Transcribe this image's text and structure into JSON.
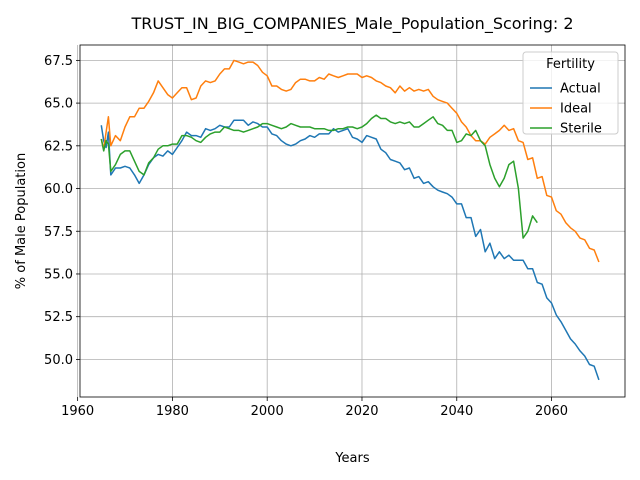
{
  "chart_data": {
    "type": "line",
    "title": "TRUST_IN_BIG_COMPANIES_Male_Population_Scoring: 2",
    "xlabel": "Years",
    "ylabel": "% of Male Population",
    "xlim": [
      1960.5,
      2075.5
    ],
    "ylim": [
      47.8,
      68.4
    ],
    "xticks": [
      1960,
      1980,
      2000,
      2020,
      2040,
      2060
    ],
    "yticks": [
      50.0,
      52.5,
      55.0,
      57.5,
      60.0,
      62.5,
      65.0,
      67.5
    ],
    "grid": true,
    "legend": {
      "title": "Fertility",
      "placement": "top-right"
    },
    "series": [
      {
        "name": "Actual",
        "color": "#1f77b4",
        "points": [
          [
            1965,
            63.7
          ],
          [
            1965.5,
            62.8
          ],
          [
            1966,
            62.4
          ],
          [
            1966.5,
            63.3
          ],
          [
            1967,
            60.8
          ],
          [
            1968,
            61.2
          ],
          [
            1969,
            61.2
          ],
          [
            1970,
            61.3
          ],
          [
            1971,
            61.2
          ],
          [
            1972,
            60.8
          ],
          [
            1973,
            60.3
          ],
          [
            1974,
            60.8
          ],
          [
            1975,
            61.4
          ],
          [
            1976,
            61.8
          ],
          [
            1977,
            62.0
          ],
          [
            1978,
            61.9
          ],
          [
            1979,
            62.2
          ],
          [
            1980,
            62.0
          ],
          [
            1981,
            62.4
          ],
          [
            1982,
            62.8
          ],
          [
            1983,
            63.3
          ],
          [
            1984,
            63.1
          ],
          [
            1985,
            63.1
          ],
          [
            1986,
            63.0
          ],
          [
            1987,
            63.5
          ],
          [
            1988,
            63.4
          ],
          [
            1989,
            63.5
          ],
          [
            1990,
            63.7
          ],
          [
            1991,
            63.6
          ],
          [
            1992,
            63.6
          ],
          [
            1993,
            64.0
          ],
          [
            1994,
            64.0
          ],
          [
            1995,
            64.0
          ],
          [
            1996,
            63.7
          ],
          [
            1997,
            63.9
          ],
          [
            1998,
            63.8
          ],
          [
            1999,
            63.6
          ],
          [
            2000,
            63.6
          ],
          [
            2001,
            63.2
          ],
          [
            2002,
            63.1
          ],
          [
            2003,
            62.8
          ],
          [
            2004,
            62.6
          ],
          [
            2005,
            62.5
          ],
          [
            2006,
            62.6
          ],
          [
            2007,
            62.8
          ],
          [
            2008,
            62.9
          ],
          [
            2009,
            63.1
          ],
          [
            2010,
            63.0
          ],
          [
            2011,
            63.2
          ],
          [
            2012,
            63.2
          ],
          [
            2013,
            63.2
          ],
          [
            2014,
            63.5
          ],
          [
            2015,
            63.3
          ],
          [
            2016,
            63.4
          ],
          [
            2017,
            63.5
          ],
          [
            2018,
            63.0
          ],
          [
            2019,
            62.9
          ],
          [
            2020,
            62.7
          ],
          [
            2021,
            63.1
          ],
          [
            2022,
            63.0
          ],
          [
            2023,
            62.9
          ],
          [
            2024,
            62.3
          ],
          [
            2025,
            62.1
          ],
          [
            2026,
            61.7
          ],
          [
            2027,
            61.6
          ],
          [
            2028,
            61.5
          ],
          [
            2029,
            61.1
          ],
          [
            2030,
            61.2
          ],
          [
            2031,
            60.6
          ],
          [
            2032,
            60.7
          ],
          [
            2033,
            60.3
          ],
          [
            2034,
            60.4
          ],
          [
            2035,
            60.1
          ],
          [
            2036,
            59.9
          ],
          [
            2037,
            59.8
          ],
          [
            2038,
            59.7
          ],
          [
            2039,
            59.5
          ],
          [
            2040,
            59.1
          ],
          [
            2041,
            59.1
          ],
          [
            2042,
            58.3
          ],
          [
            2043,
            58.3
          ],
          [
            2044,
            57.2
          ],
          [
            2045,
            57.6
          ],
          [
            2046,
            56.3
          ],
          [
            2047,
            56.8
          ],
          [
            2048,
            55.9
          ],
          [
            2049,
            56.3
          ],
          [
            2050,
            55.9
          ],
          [
            2051,
            56.1
          ],
          [
            2052,
            55.8
          ],
          [
            2053,
            55.8
          ],
          [
            2054,
            55.8
          ],
          [
            2055,
            55.3
          ],
          [
            2056,
            55.3
          ],
          [
            2057,
            54.5
          ],
          [
            2058,
            54.4
          ],
          [
            2059,
            53.6
          ],
          [
            2060,
            53.3
          ],
          [
            2061,
            52.6
          ],
          [
            2062,
            52.2
          ],
          [
            2063,
            51.7
          ],
          [
            2064,
            51.2
          ],
          [
            2065,
            50.9
          ],
          [
            2066,
            50.5
          ],
          [
            2067,
            50.2
          ],
          [
            2068,
            49.7
          ],
          [
            2069,
            49.6
          ],
          [
            2070,
            48.8
          ]
        ]
      },
      {
        "name": "Ideal",
        "color": "#ff7f0e",
        "points": [
          [
            1965,
            62.9
          ],
          [
            1965.5,
            62.3
          ],
          [
            1966,
            63.3
          ],
          [
            1966.5,
            64.2
          ],
          [
            1967,
            62.5
          ],
          [
            1968,
            63.1
          ],
          [
            1969,
            62.8
          ],
          [
            1970,
            63.6
          ],
          [
            1971,
            64.2
          ],
          [
            1972,
            64.2
          ],
          [
            1973,
            64.7
          ],
          [
            1974,
            64.7
          ],
          [
            1975,
            65.1
          ],
          [
            1976,
            65.6
          ],
          [
            1977,
            66.3
          ],
          [
            1978,
            65.9
          ],
          [
            1979,
            65.5
          ],
          [
            1980,
            65.3
          ],
          [
            1981,
            65.6
          ],
          [
            1982,
            65.9
          ],
          [
            1983,
            65.9
          ],
          [
            1984,
            65.2
          ],
          [
            1985,
            65.3
          ],
          [
            1986,
            66.0
          ],
          [
            1987,
            66.3
          ],
          [
            1988,
            66.2
          ],
          [
            1989,
            66.3
          ],
          [
            1990,
            66.7
          ],
          [
            1991,
            67.0
          ],
          [
            1992,
            67.0
          ],
          [
            1993,
            67.5
          ],
          [
            1994,
            67.4
          ],
          [
            1995,
            67.3
          ],
          [
            1996,
            67.4
          ],
          [
            1997,
            67.4
          ],
          [
            1998,
            67.2
          ],
          [
            1999,
            66.8
          ],
          [
            2000,
            66.6
          ],
          [
            2001,
            66.0
          ],
          [
            2002,
            66.0
          ],
          [
            2003,
            65.8
          ],
          [
            2004,
            65.7
          ],
          [
            2005,
            65.8
          ],
          [
            2006,
            66.2
          ],
          [
            2007,
            66.4
          ],
          [
            2008,
            66.4
          ],
          [
            2009,
            66.3
          ],
          [
            2010,
            66.3
          ],
          [
            2011,
            66.5
          ],
          [
            2012,
            66.4
          ],
          [
            2013,
            66.7
          ],
          [
            2014,
            66.6
          ],
          [
            2015,
            66.5
          ],
          [
            2016,
            66.6
          ],
          [
            2017,
            66.7
          ],
          [
            2018,
            66.7
          ],
          [
            2019,
            66.7
          ],
          [
            2020,
            66.5
          ],
          [
            2021,
            66.6
          ],
          [
            2022,
            66.5
          ],
          [
            2023,
            66.3
          ],
          [
            2024,
            66.2
          ],
          [
            2025,
            66.0
          ],
          [
            2026,
            65.9
          ],
          [
            2027,
            65.6
          ],
          [
            2028,
            66.0
          ],
          [
            2029,
            65.7
          ],
          [
            2030,
            65.9
          ],
          [
            2031,
            65.7
          ],
          [
            2032,
            65.8
          ],
          [
            2033,
            65.7
          ],
          [
            2034,
            65.8
          ],
          [
            2035,
            65.4
          ],
          [
            2036,
            65.2
          ],
          [
            2037,
            65.1
          ],
          [
            2038,
            65.0
          ],
          [
            2039,
            64.7
          ],
          [
            2040,
            64.4
          ],
          [
            2041,
            63.9
          ],
          [
            2042,
            63.6
          ],
          [
            2043,
            63.1
          ],
          [
            2044,
            62.8
          ],
          [
            2045,
            62.8
          ],
          [
            2046,
            62.6
          ],
          [
            2047,
            63.0
          ],
          [
            2048,
            63.2
          ],
          [
            2049,
            63.4
          ],
          [
            2050,
            63.7
          ],
          [
            2051,
            63.4
          ],
          [
            2052,
            63.5
          ],
          [
            2053,
            62.8
          ],
          [
            2054,
            62.7
          ],
          [
            2055,
            61.7
          ],
          [
            2056,
            61.8
          ],
          [
            2057,
            60.6
          ],
          [
            2058,
            60.7
          ],
          [
            2059,
            59.6
          ],
          [
            2060,
            59.5
          ],
          [
            2061,
            58.7
          ],
          [
            2062,
            58.5
          ],
          [
            2063,
            58.0
          ],
          [
            2064,
            57.7
          ],
          [
            2065,
            57.5
          ],
          [
            2066,
            57.1
          ],
          [
            2067,
            57.0
          ],
          [
            2068,
            56.5
          ],
          [
            2069,
            56.4
          ],
          [
            2070,
            55.7
          ]
        ]
      },
      {
        "name": "Sterile",
        "color": "#2ca02c",
        "points": [
          [
            1965,
            62.9
          ],
          [
            1965.5,
            62.2
          ],
          [
            1966,
            62.8
          ],
          [
            1966.5,
            62.6
          ],
          [
            1967,
            61.0
          ],
          [
            1968,
            61.4
          ],
          [
            1969,
            62.0
          ],
          [
            1970,
            62.2
          ],
          [
            1971,
            62.2
          ],
          [
            1972,
            61.6
          ],
          [
            1973,
            61.0
          ],
          [
            1974,
            60.8
          ],
          [
            1975,
            61.5
          ],
          [
            1976,
            61.8
          ],
          [
            1977,
            62.3
          ],
          [
            1978,
            62.5
          ],
          [
            1979,
            62.5
          ],
          [
            1980,
            62.6
          ],
          [
            1981,
            62.6
          ],
          [
            1982,
            63.1
          ],
          [
            1983,
            63.1
          ],
          [
            1984,
            63.0
          ],
          [
            1985,
            62.8
          ],
          [
            1986,
            62.7
          ],
          [
            1987,
            63.0
          ],
          [
            1988,
            63.2
          ],
          [
            1989,
            63.3
          ],
          [
            1990,
            63.3
          ],
          [
            1991,
            63.6
          ],
          [
            1992,
            63.5
          ],
          [
            1993,
            63.4
          ],
          [
            1994,
            63.4
          ],
          [
            1995,
            63.3
          ],
          [
            1996,
            63.4
          ],
          [
            1997,
            63.5
          ],
          [
            1998,
            63.6
          ],
          [
            1999,
            63.8
          ],
          [
            2000,
            63.8
          ],
          [
            2001,
            63.7
          ],
          [
            2002,
            63.6
          ],
          [
            2003,
            63.5
          ],
          [
            2004,
            63.6
          ],
          [
            2005,
            63.8
          ],
          [
            2006,
            63.7
          ],
          [
            2007,
            63.6
          ],
          [
            2008,
            63.6
          ],
          [
            2009,
            63.6
          ],
          [
            2010,
            63.5
          ],
          [
            2011,
            63.5
          ],
          [
            2012,
            63.5
          ],
          [
            2013,
            63.4
          ],
          [
            2014,
            63.4
          ],
          [
            2015,
            63.5
          ],
          [
            2016,
            63.5
          ],
          [
            2017,
            63.6
          ],
          [
            2018,
            63.6
          ],
          [
            2019,
            63.5
          ],
          [
            2020,
            63.6
          ],
          [
            2021,
            63.8
          ],
          [
            2022,
            64.1
          ],
          [
            2023,
            64.3
          ],
          [
            2024,
            64.1
          ],
          [
            2025,
            64.1
          ],
          [
            2026,
            63.9
          ],
          [
            2027,
            63.8
          ],
          [
            2028,
            63.9
          ],
          [
            2029,
            63.8
          ],
          [
            2030,
            63.9
          ],
          [
            2031,
            63.6
          ],
          [
            2032,
            63.6
          ],
          [
            2033,
            63.8
          ],
          [
            2034,
            64.0
          ],
          [
            2035,
            64.2
          ],
          [
            2036,
            63.8
          ],
          [
            2037,
            63.7
          ],
          [
            2038,
            63.4
          ],
          [
            2039,
            63.4
          ],
          [
            2040,
            62.7
          ],
          [
            2041,
            62.8
          ],
          [
            2042,
            63.2
          ],
          [
            2043,
            63.1
          ],
          [
            2044,
            63.4
          ],
          [
            2045,
            62.8
          ],
          [
            2046,
            62.5
          ],
          [
            2047,
            61.4
          ],
          [
            2048,
            60.6
          ],
          [
            2049,
            60.1
          ],
          [
            2050,
            60.6
          ],
          [
            2051,
            61.4
          ],
          [
            2052,
            61.6
          ],
          [
            2053,
            60.0
          ],
          [
            2054,
            57.1
          ],
          [
            2055,
            57.5
          ],
          [
            2056,
            58.4
          ],
          [
            2057,
            58.0
          ]
        ]
      }
    ]
  }
}
